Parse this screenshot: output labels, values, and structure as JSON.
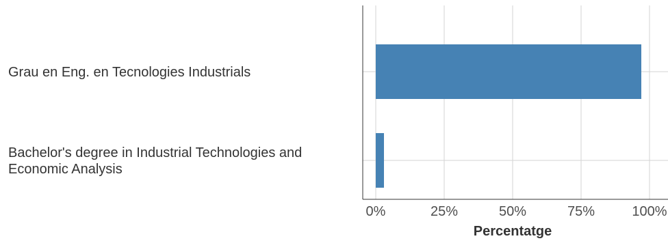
{
  "chart_data": {
    "type": "bar",
    "orientation": "horizontal",
    "categories": [
      [
        "Grau en Eng. en Tecnologies Industrials"
      ],
      [
        "Bachelor's degree in Industrial Technologies and",
        "Economic Analysis"
      ]
    ],
    "values": [
      0.97,
      0.03
    ],
    "xlabel": "Percentatge",
    "xlim": [
      0,
      1
    ],
    "xticks": [
      0,
      0.25,
      0.5,
      0.75,
      1
    ],
    "xtick_labels": [
      "0%",
      "25%",
      "50%",
      "75%",
      "100%"
    ],
    "grid": true,
    "bar_color": "#4682b4",
    "grid_color": "#d3d3d3",
    "axis_color": "#333333"
  }
}
